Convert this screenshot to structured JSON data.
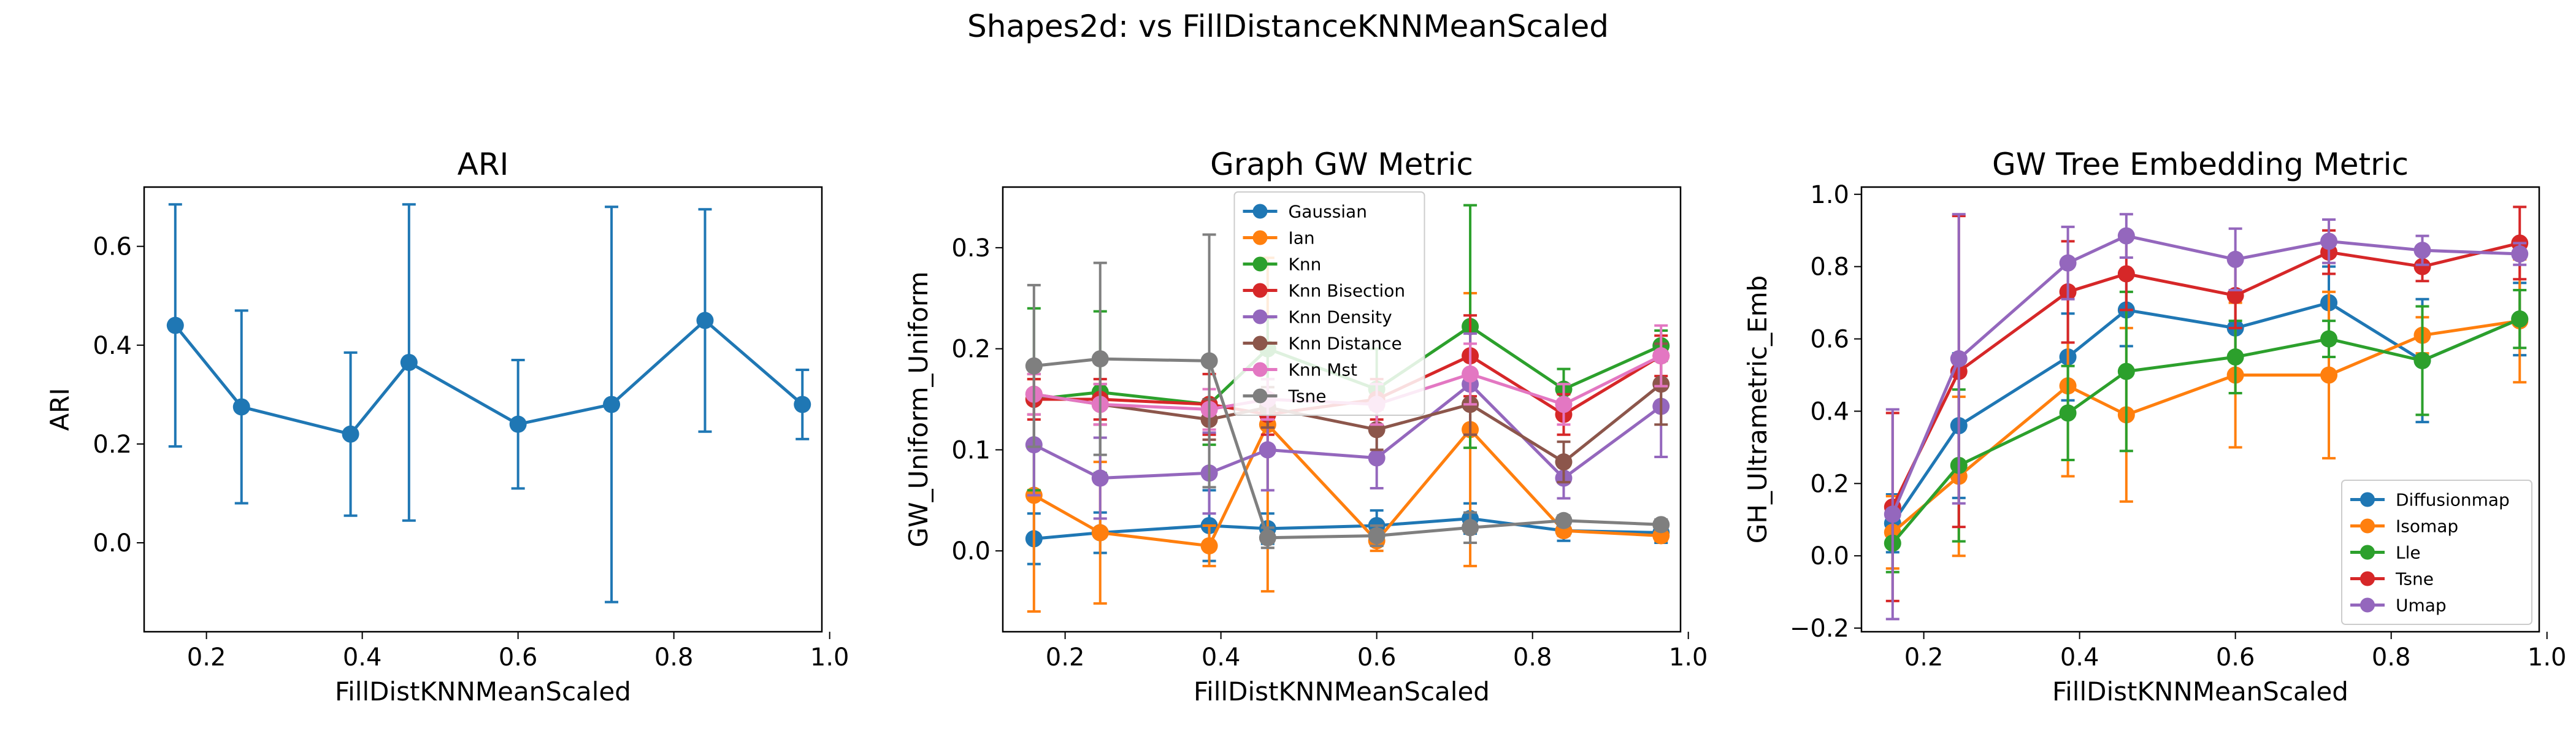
{
  "figure": {
    "suptitle": "Shapes2d: vs FillDistanceKNNMeanScaled"
  },
  "colors": {
    "blue": "#1f77b4",
    "orange": "#ff7f0e",
    "green": "#2ca02c",
    "red": "#d62728",
    "purple": "#9467bd",
    "brown": "#8c564b",
    "pink": "#e377c2",
    "gray": "#7f7f7f"
  },
  "chart_data": [
    {
      "type": "line",
      "title": "ARI",
      "xlabel": "FillDistKNNMeanScaled",
      "ylabel": "ARI",
      "xlim": [
        0.12,
        0.99
      ],
      "ylim": [
        -0.18,
        0.72
      ],
      "xticks": [
        0.2,
        0.4,
        0.6,
        0.8,
        1.0
      ],
      "xtick_labels": [
        "0.2",
        "0.4",
        "0.6",
        "0.8",
        "1.0"
      ],
      "yticks": [
        0.0,
        0.2,
        0.4,
        0.6
      ],
      "ytick_labels": [
        "0.0",
        "0.2",
        "0.4",
        "0.6"
      ],
      "grid": false,
      "legend": null,
      "x": [
        0.16,
        0.245,
        0.385,
        0.46,
        0.6,
        0.72,
        0.84,
        0.965
      ],
      "series": [
        {
          "name": "",
          "color": "blue",
          "values": [
            0.44,
            0.275,
            0.22,
            0.365,
            0.24,
            0.28,
            0.45,
            0.28
          ],
          "errors": [
            0.245,
            0.195,
            0.165,
            0.32,
            0.13,
            0.4,
            0.225,
            0.07
          ]
        }
      ]
    },
    {
      "type": "line",
      "title": "Graph GW Metric",
      "xlabel": "FillDistKNNMeanScaled",
      "ylabel": "GW_Uniform_Uniform",
      "xlim": [
        0.12,
        0.99
      ],
      "ylim": [
        -0.08,
        0.36
      ],
      "xticks": [
        0.2,
        0.4,
        0.6,
        0.8,
        1.0
      ],
      "xtick_labels": [
        "0.2",
        "0.4",
        "0.6",
        "0.8",
        "1.0"
      ],
      "yticks": [
        0.0,
        0.1,
        0.2,
        0.3
      ],
      "ytick_labels": [
        "0.0",
        "0.1",
        "0.2",
        "0.3"
      ],
      "grid": false,
      "legend": "upper-center",
      "x": [
        0.16,
        0.245,
        0.385,
        0.46,
        0.6,
        0.72,
        0.84,
        0.965
      ],
      "series": [
        {
          "name": "Gaussian",
          "color": "blue",
          "values": [
            0.012,
            0.018,
            0.025,
            0.022,
            0.025,
            0.032,
            0.02,
            0.018
          ],
          "errors": [
            0.025,
            0.02,
            0.035,
            0.015,
            0.015,
            0.015,
            0.01,
            0.01
          ]
        },
        {
          "name": "Ian",
          "color": "orange",
          "values": [
            0.055,
            0.018,
            0.005,
            0.125,
            0.01,
            0.12,
            0.02,
            0.015
          ],
          "errors": [
            0.115,
            0.07,
            0.02,
            0.165,
            0.01,
            0.135,
            0.005,
            0.005
          ]
        },
        {
          "name": "Knn",
          "color": "green",
          "values": [
            0.15,
            0.157,
            0.145,
            0.2,
            0.16,
            0.222,
            0.16,
            0.203
          ],
          "errors": [
            0.09,
            0.08,
            0.04,
            0.03,
            0.04,
            0.12,
            0.02,
            0.015
          ]
        },
        {
          "name": "Knn Bisection",
          "color": "red",
          "values": [
            0.15,
            0.15,
            0.145,
            0.135,
            0.15,
            0.193,
            0.135,
            0.193
          ],
          "errors": [
            0.02,
            0.02,
            0.03,
            0.02,
            0.02,
            0.04,
            0.02,
            0.02
          ]
        },
        {
          "name": "Knn Density",
          "color": "purple",
          "values": [
            0.105,
            0.072,
            0.077,
            0.1,
            0.092,
            0.165,
            0.072,
            0.143
          ],
          "errors": [
            0.05,
            0.04,
            0.04,
            0.04,
            0.03,
            0.05,
            0.02,
            0.05
          ]
        },
        {
          "name": "Knn Distance",
          "color": "brown",
          "values": [
            0.155,
            0.145,
            0.13,
            0.142,
            0.12,
            0.145,
            0.088,
            0.165
          ],
          "errors": [
            0.02,
            0.02,
            0.02,
            0.02,
            0.02,
            0.03,
            0.02,
            0.04
          ]
        },
        {
          "name": "Knn Mst",
          "color": "pink",
          "values": [
            0.155,
            0.145,
            0.14,
            0.15,
            0.145,
            0.175,
            0.145,
            0.193
          ],
          "errors": [
            0.02,
            0.02,
            0.02,
            0.02,
            0.02,
            0.03,
            0.02,
            0.03
          ]
        },
        {
          "name": "Tsne",
          "color": "gray",
          "values": [
            0.183,
            0.19,
            0.188,
            0.013,
            0.015,
            0.023,
            0.03,
            0.026
          ],
          "errors": [
            0.08,
            0.095,
            0.125,
            0.01,
            0.01,
            0.015,
            0.005,
            0.005
          ]
        }
      ]
    },
    {
      "type": "line",
      "title": "GW Tree Embedding Metric",
      "xlabel": "FillDistKNNMeanScaled",
      "ylabel": "GH_Ultrametric_Emb",
      "xlim": [
        0.12,
        0.99
      ],
      "ylim": [
        -0.21,
        1.02
      ],
      "xticks": [
        0.2,
        0.4,
        0.6,
        0.8,
        1.0
      ],
      "xtick_labels": [
        "0.2",
        "0.4",
        "0.6",
        "0.8",
        "1.0"
      ],
      "yticks": [
        -0.2,
        0.0,
        0.2,
        0.4,
        0.6,
        0.8,
        1.0
      ],
      "ytick_labels": [
        "−0.2",
        "0.0",
        "0.2",
        "0.4",
        "0.6",
        "0.8",
        "1.0"
      ],
      "grid": false,
      "legend": "lower-right",
      "x": [
        0.16,
        0.245,
        0.385,
        0.46,
        0.6,
        0.72,
        0.84,
        0.965
      ],
      "series": [
        {
          "name": "Diffusionmap",
          "color": "blue",
          "values": [
            0.09,
            0.36,
            0.55,
            0.68,
            0.63,
            0.7,
            0.54,
            0.655
          ],
          "errors": [
            0.08,
            0.2,
            0.12,
            0.1,
            0.08,
            0.1,
            0.17,
            0.1
          ]
        },
        {
          "name": "Isomap",
          "color": "orange",
          "values": [
            0.065,
            0.22,
            0.47,
            0.39,
            0.5,
            0.5,
            0.61,
            0.65
          ],
          "errors": [
            0.1,
            0.22,
            0.25,
            0.24,
            0.2,
            0.23,
            0.05,
            0.17
          ]
        },
        {
          "name": "Lle",
          "color": "green",
          "values": [
            0.035,
            0.25,
            0.395,
            0.51,
            0.55,
            0.6,
            0.54,
            0.655
          ],
          "errors": [
            0.08,
            0.21,
            0.13,
            0.22,
            0.1,
            0.05,
            0.15,
            0.08
          ]
        },
        {
          "name": "Tsne",
          "color": "red",
          "values": [
            0.135,
            0.51,
            0.73,
            0.78,
            0.72,
            0.84,
            0.8,
            0.865
          ],
          "errors": [
            0.26,
            0.43,
            0.14,
            0.1,
            0.09,
            0.06,
            0.04,
            0.1
          ]
        },
        {
          "name": "Umap",
          "color": "purple",
          "values": [
            0.115,
            0.545,
            0.81,
            0.885,
            0.82,
            0.87,
            0.845,
            0.835
          ],
          "errors": [
            0.29,
            0.4,
            0.1,
            0.06,
            0.085,
            0.06,
            0.04,
            0.03
          ]
        }
      ]
    }
  ]
}
